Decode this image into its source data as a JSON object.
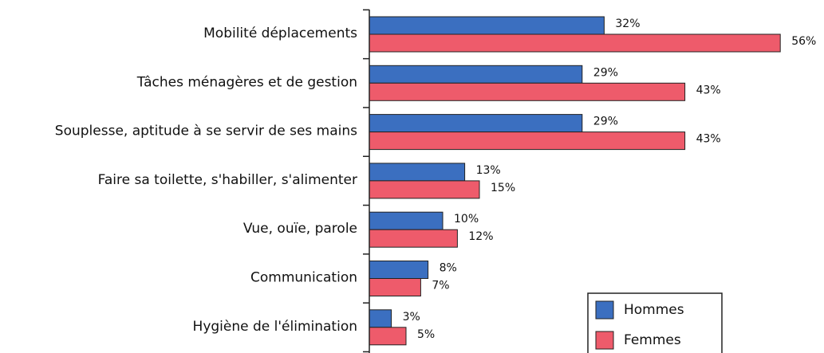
{
  "chart_data": {
    "type": "bar",
    "orientation": "horizontal",
    "categories": [
      "Mobilité déplacements",
      "Tâches ménagères et de gestion",
      "Souplesse, aptitude à se servir de ses mains",
      "Faire sa toilette, s'habiller, s'alimenter",
      "Vue, ouïe, parole",
      "Communication",
      "Hygiène de l'élimination"
    ],
    "series": [
      {
        "name": "Hommes",
        "color": "#3b6fc0",
        "values": [
          32,
          29,
          29,
          13,
          10,
          8,
          3
        ],
        "value_labels": [
          "32%",
          "29%",
          "29%",
          "13%",
          "10%",
          "8%",
          "3%"
        ]
      },
      {
        "name": "Femmes",
        "color": "#ee5b6b",
        "values": [
          56,
          43,
          43,
          15,
          12,
          7,
          5
        ],
        "value_labels": [
          "56%",
          "43%",
          "43%",
          "15%",
          "12%",
          "7%",
          "5%"
        ]
      }
    ],
    "legend": "lower right"
  }
}
